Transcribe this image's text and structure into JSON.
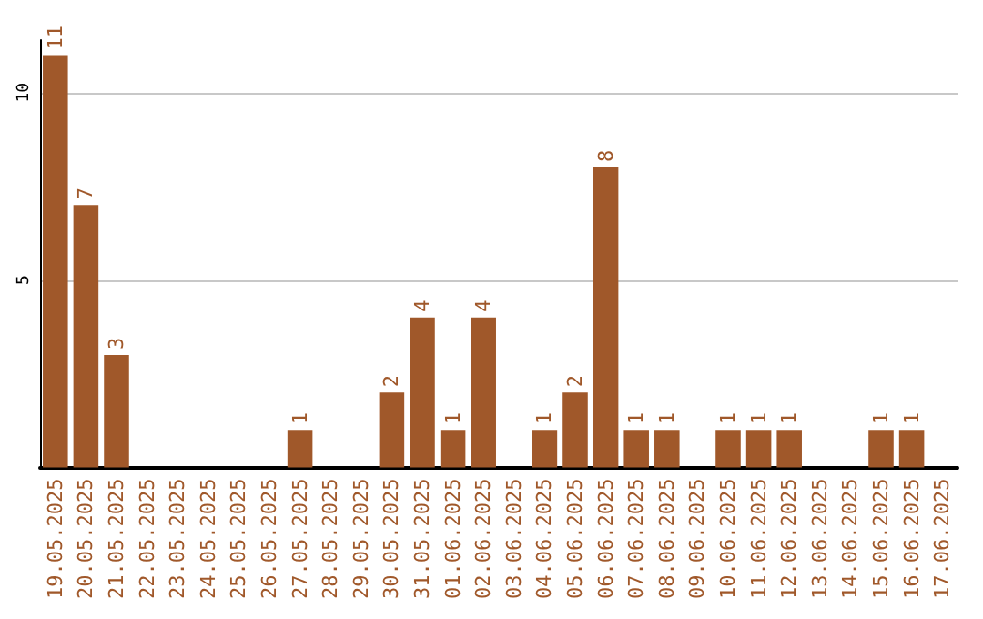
{
  "chart_data": {
    "type": "bar",
    "categories": [
      "19.05.2025",
      "20.05.2025",
      "21.05.2025",
      "22.05.2025",
      "23.05.2025",
      "24.05.2025",
      "25.05.2025",
      "26.05.2025",
      "27.05.2025",
      "28.05.2025",
      "29.05.2025",
      "30.05.2025",
      "31.05.2025",
      "01.06.2025",
      "02.06.2025",
      "03.06.2025",
      "04.06.2025",
      "05.06.2025",
      "06.06.2025",
      "07.06.2025",
      "08.06.2025",
      "09.06.2025",
      "10.06.2025",
      "11.06.2025",
      "12.06.2025",
      "13.06.2025",
      "14.06.2025",
      "15.06.2025",
      "16.06.2025",
      "17.06.2025"
    ],
    "values": [
      11,
      7,
      3,
      0,
      0,
      0,
      0,
      0,
      1,
      0,
      0,
      2,
      4,
      1,
      4,
      0,
      1,
      2,
      8,
      1,
      1,
      0,
      1,
      1,
      1,
      0,
      0,
      1,
      1,
      0
    ],
    "value_labels": [
      "11",
      "7",
      "3",
      null,
      null,
      null,
      null,
      null,
      "1",
      null,
      null,
      "2",
      "4",
      "1",
      "4",
      null,
      "1",
      "2",
      "8",
      "1",
      "1",
      null,
      "1",
      "1",
      "1",
      null,
      null,
      "1",
      "1",
      null
    ],
    "color": "#a0582a",
    "ylim": [
      0,
      11.4
    ],
    "yticks": [
      5,
      10
    ],
    "grid": "y"
  }
}
